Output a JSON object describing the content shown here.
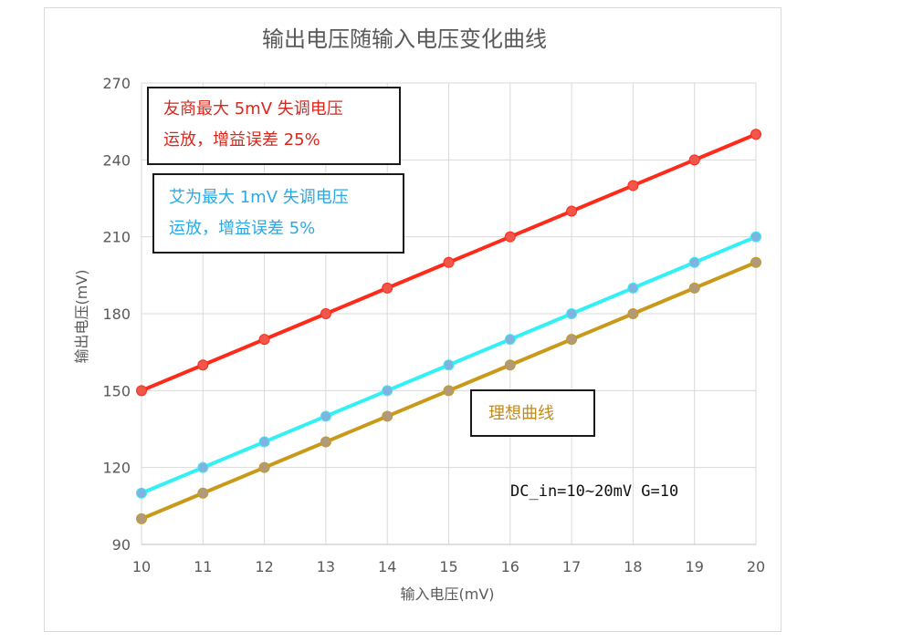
{
  "chart_data": {
    "type": "line",
    "title": "输出电压随输入电压变化曲线",
    "xlabel": "输入电压(mV)",
    "ylabel": "输出电压(mV)",
    "x": [
      10,
      11,
      12,
      13,
      14,
      15,
      16,
      17,
      18,
      19,
      20
    ],
    "xlim": [
      10,
      20
    ],
    "ylim": [
      90,
      270
    ],
    "yticks": [
      90,
      120,
      150,
      180,
      210,
      240,
      270
    ],
    "grid": true,
    "series": [
      {
        "key": "competitor",
        "color": "#ff2a1a",
        "marker": "#f0574a",
        "values": [
          150,
          160,
          170,
          180,
          190,
          200,
          210,
          220,
          230,
          240,
          250
        ]
      },
      {
        "key": "aiwei",
        "color": "#33f0f5",
        "marker": "#7fb3e0",
        "values": [
          110,
          120,
          130,
          140,
          150,
          160,
          170,
          180,
          190,
          200,
          210
        ]
      },
      {
        "key": "ideal",
        "color": "#c99a1a",
        "marker": "#b09a7a",
        "values": [
          100,
          110,
          120,
          130,
          140,
          150,
          160,
          170,
          180,
          190,
          200
        ]
      }
    ]
  },
  "annotations": {
    "competitor_line1": "友商最大 5mV 失调电压",
    "competitor_line2": "运放，增益误差 25%",
    "aiwei_line1": "艾为最大 1mV 失调电压",
    "aiwei_line2": "运放，增益误差 5%",
    "ideal": "理想曲线",
    "params": "DC_in=10~20mV G=10"
  }
}
